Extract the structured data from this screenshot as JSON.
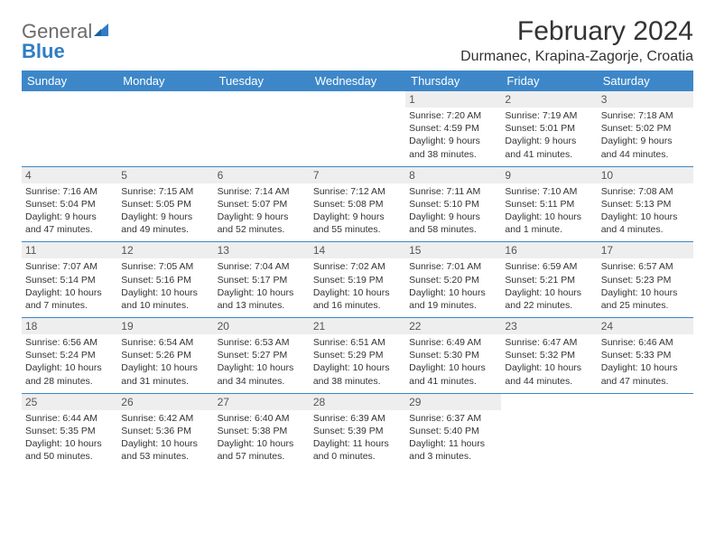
{
  "logo": {
    "text1": "General",
    "text2": "Blue"
  },
  "title": "February 2024",
  "location": "Durmanec, Krapina-Zagorje, Croatia",
  "colors": {
    "header_bg": "#3d87c9",
    "header_text": "#ffffff",
    "divider": "#3d87c9",
    "daynum_bg": "#eeeeee",
    "logo_gray": "#6b6b6b",
    "logo_blue": "#2f7dc4"
  },
  "day_labels": [
    "Sunday",
    "Monday",
    "Tuesday",
    "Wednesday",
    "Thursday",
    "Friday",
    "Saturday"
  ],
  "weeks": [
    [
      {
        "n": "",
        "sr": "",
        "ss": "",
        "dl": ""
      },
      {
        "n": "",
        "sr": "",
        "ss": "",
        "dl": ""
      },
      {
        "n": "",
        "sr": "",
        "ss": "",
        "dl": ""
      },
      {
        "n": "",
        "sr": "",
        "ss": "",
        "dl": ""
      },
      {
        "n": "1",
        "sr": "Sunrise: 7:20 AM",
        "ss": "Sunset: 4:59 PM",
        "dl": "Daylight: 9 hours and 38 minutes."
      },
      {
        "n": "2",
        "sr": "Sunrise: 7:19 AM",
        "ss": "Sunset: 5:01 PM",
        "dl": "Daylight: 9 hours and 41 minutes."
      },
      {
        "n": "3",
        "sr": "Sunrise: 7:18 AM",
        "ss": "Sunset: 5:02 PM",
        "dl": "Daylight: 9 hours and 44 minutes."
      }
    ],
    [
      {
        "n": "4",
        "sr": "Sunrise: 7:16 AM",
        "ss": "Sunset: 5:04 PM",
        "dl": "Daylight: 9 hours and 47 minutes."
      },
      {
        "n": "5",
        "sr": "Sunrise: 7:15 AM",
        "ss": "Sunset: 5:05 PM",
        "dl": "Daylight: 9 hours and 49 minutes."
      },
      {
        "n": "6",
        "sr": "Sunrise: 7:14 AM",
        "ss": "Sunset: 5:07 PM",
        "dl": "Daylight: 9 hours and 52 minutes."
      },
      {
        "n": "7",
        "sr": "Sunrise: 7:12 AM",
        "ss": "Sunset: 5:08 PM",
        "dl": "Daylight: 9 hours and 55 minutes."
      },
      {
        "n": "8",
        "sr": "Sunrise: 7:11 AM",
        "ss": "Sunset: 5:10 PM",
        "dl": "Daylight: 9 hours and 58 minutes."
      },
      {
        "n": "9",
        "sr": "Sunrise: 7:10 AM",
        "ss": "Sunset: 5:11 PM",
        "dl": "Daylight: 10 hours and 1 minute."
      },
      {
        "n": "10",
        "sr": "Sunrise: 7:08 AM",
        "ss": "Sunset: 5:13 PM",
        "dl": "Daylight: 10 hours and 4 minutes."
      }
    ],
    [
      {
        "n": "11",
        "sr": "Sunrise: 7:07 AM",
        "ss": "Sunset: 5:14 PM",
        "dl": "Daylight: 10 hours and 7 minutes."
      },
      {
        "n": "12",
        "sr": "Sunrise: 7:05 AM",
        "ss": "Sunset: 5:16 PM",
        "dl": "Daylight: 10 hours and 10 minutes."
      },
      {
        "n": "13",
        "sr": "Sunrise: 7:04 AM",
        "ss": "Sunset: 5:17 PM",
        "dl": "Daylight: 10 hours and 13 minutes."
      },
      {
        "n": "14",
        "sr": "Sunrise: 7:02 AM",
        "ss": "Sunset: 5:19 PM",
        "dl": "Daylight: 10 hours and 16 minutes."
      },
      {
        "n": "15",
        "sr": "Sunrise: 7:01 AM",
        "ss": "Sunset: 5:20 PM",
        "dl": "Daylight: 10 hours and 19 minutes."
      },
      {
        "n": "16",
        "sr": "Sunrise: 6:59 AM",
        "ss": "Sunset: 5:21 PM",
        "dl": "Daylight: 10 hours and 22 minutes."
      },
      {
        "n": "17",
        "sr": "Sunrise: 6:57 AM",
        "ss": "Sunset: 5:23 PM",
        "dl": "Daylight: 10 hours and 25 minutes."
      }
    ],
    [
      {
        "n": "18",
        "sr": "Sunrise: 6:56 AM",
        "ss": "Sunset: 5:24 PM",
        "dl": "Daylight: 10 hours and 28 minutes."
      },
      {
        "n": "19",
        "sr": "Sunrise: 6:54 AM",
        "ss": "Sunset: 5:26 PM",
        "dl": "Daylight: 10 hours and 31 minutes."
      },
      {
        "n": "20",
        "sr": "Sunrise: 6:53 AM",
        "ss": "Sunset: 5:27 PM",
        "dl": "Daylight: 10 hours and 34 minutes."
      },
      {
        "n": "21",
        "sr": "Sunrise: 6:51 AM",
        "ss": "Sunset: 5:29 PM",
        "dl": "Daylight: 10 hours and 38 minutes."
      },
      {
        "n": "22",
        "sr": "Sunrise: 6:49 AM",
        "ss": "Sunset: 5:30 PM",
        "dl": "Daylight: 10 hours and 41 minutes."
      },
      {
        "n": "23",
        "sr": "Sunrise: 6:47 AM",
        "ss": "Sunset: 5:32 PM",
        "dl": "Daylight: 10 hours and 44 minutes."
      },
      {
        "n": "24",
        "sr": "Sunrise: 6:46 AM",
        "ss": "Sunset: 5:33 PM",
        "dl": "Daylight: 10 hours and 47 minutes."
      }
    ],
    [
      {
        "n": "25",
        "sr": "Sunrise: 6:44 AM",
        "ss": "Sunset: 5:35 PM",
        "dl": "Daylight: 10 hours and 50 minutes."
      },
      {
        "n": "26",
        "sr": "Sunrise: 6:42 AM",
        "ss": "Sunset: 5:36 PM",
        "dl": "Daylight: 10 hours and 53 minutes."
      },
      {
        "n": "27",
        "sr": "Sunrise: 6:40 AM",
        "ss": "Sunset: 5:38 PM",
        "dl": "Daylight: 10 hours and 57 minutes."
      },
      {
        "n": "28",
        "sr": "Sunrise: 6:39 AM",
        "ss": "Sunset: 5:39 PM",
        "dl": "Daylight: 11 hours and 0 minutes."
      },
      {
        "n": "29",
        "sr": "Sunrise: 6:37 AM",
        "ss": "Sunset: 5:40 PM",
        "dl": "Daylight: 11 hours and 3 minutes."
      },
      {
        "n": "",
        "sr": "",
        "ss": "",
        "dl": ""
      },
      {
        "n": "",
        "sr": "",
        "ss": "",
        "dl": ""
      }
    ]
  ]
}
